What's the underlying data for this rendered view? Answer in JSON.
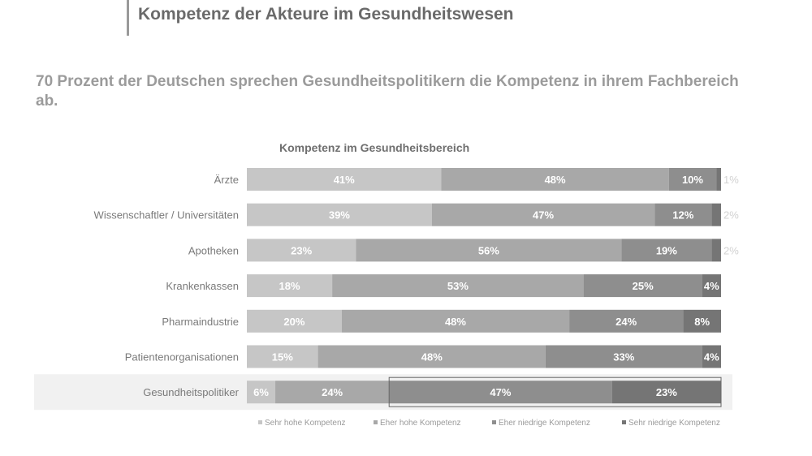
{
  "page": {
    "title": "Kompetenz der Akteure im Gesundheitswesen",
    "subtitle": "70 Prozent der Deutschen sprechen Gesundheitspolitikern die Kompetenz in ihrem Fachbereich ab."
  },
  "chart_data": {
    "type": "bar",
    "orientation": "horizontal",
    "stacked": true,
    "title": "Kompetenz im Gesundheitsbereich",
    "xlabel": "",
    "ylabel": "",
    "xlim": [
      0,
      100
    ],
    "grid": false,
    "legend_position": "bottom",
    "categories": [
      "Ärzte",
      "Wissenschaftler / Universitäten",
      "Apotheken",
      "Krankenkassen",
      "Pharmaindustrie",
      "Patientenorganisationen",
      "Gesundheitspolitiker"
    ],
    "highlighted_category": "Gesundheitspolitiker",
    "series": [
      {
        "name": "Sehr hohe Kompetenz",
        "color": "#c6c6c6",
        "values": [
          41,
          39,
          23,
          18,
          20,
          15,
          6
        ]
      },
      {
        "name": "Eher hohe Kompetenz",
        "color": "#a8a8a8",
        "values": [
          48,
          47,
          56,
          53,
          48,
          48,
          24
        ]
      },
      {
        "name": "Eher niedrige Kompetenz",
        "color": "#8e8e8e",
        "values": [
          10,
          12,
          19,
          25,
          24,
          33,
          47
        ]
      },
      {
        "name": "Sehr niedrige Kompetenz",
        "color": "#757575",
        "values": [
          1,
          2,
          2,
          4,
          8,
          4,
          23
        ]
      }
    ],
    "labels": [
      [
        "41%",
        "48%",
        "10%",
        "1%"
      ],
      [
        "39%",
        "47%",
        "12%",
        "2%"
      ],
      [
        "23%",
        "56%",
        "19%",
        "2%"
      ],
      [
        "18%",
        "53%",
        "25%",
        "4%"
      ],
      [
        "20%",
        "48%",
        "24%",
        "8%"
      ],
      [
        "15%",
        "48%",
        "33%",
        "4%"
      ],
      [
        "6%",
        "24%",
        "47%",
        "23%"
      ]
    ]
  }
}
